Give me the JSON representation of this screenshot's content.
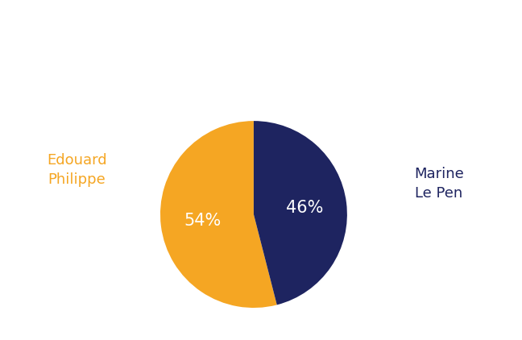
{
  "chart_data": {
    "type": "pie",
    "categories": [
      "Edouard\nPhilippe",
      "Marine\nLe Pen"
    ],
    "values": [
      54,
      46
    ],
    "value_labels": [
      "54%",
      "46%"
    ],
    "colors": [
      "#F5A623",
      "#1E2460"
    ],
    "data_labels": true
  }
}
